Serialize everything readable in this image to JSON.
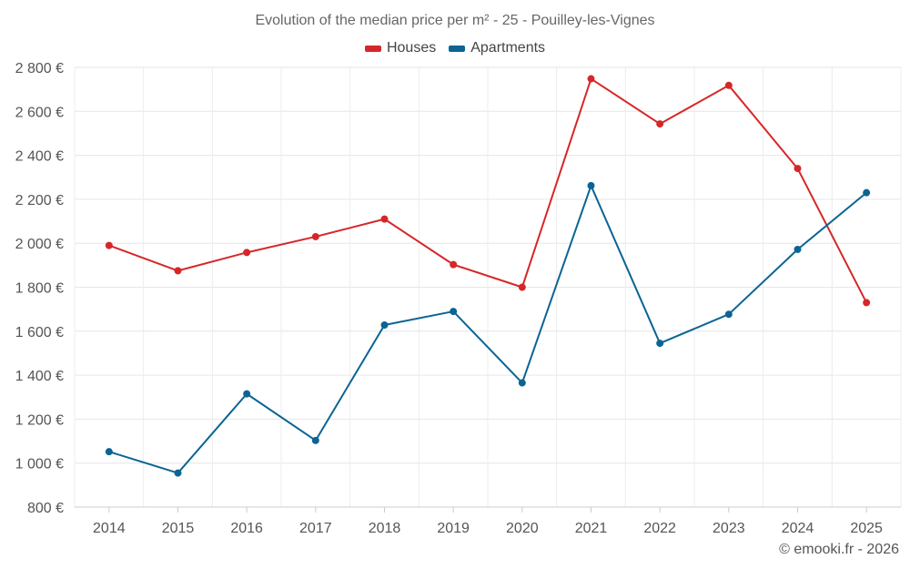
{
  "chart_data": {
    "type": "line",
    "title": "Evolution of the median price per m² - 25 - Pouilley-les-Vignes",
    "categories": [
      "2014",
      "2015",
      "2016",
      "2017",
      "2018",
      "2019",
      "2020",
      "2021",
      "2022",
      "2023",
      "2024",
      "2025"
    ],
    "series": [
      {
        "name": "Houses",
        "color": "#d62728",
        "values": [
          1990,
          1875,
          1958,
          2030,
          2110,
          1903,
          1800,
          2748,
          2543,
          2718,
          2340,
          1730
        ]
      },
      {
        "name": "Apartments",
        "color": "#0b6494",
        "values": [
          1052,
          955,
          1315,
          1103,
          1628,
          1690,
          1365,
          2262,
          1545,
          1677,
          1972,
          2230
        ]
      }
    ],
    "ylim": [
      800,
      2800
    ],
    "yticks": [
      800,
      1000,
      1200,
      1400,
      1600,
      1800,
      2000,
      2200,
      2400,
      2600,
      2800
    ],
    "ytick_labels": [
      "800 €",
      "1 000 €",
      "1 200 €",
      "1 400 €",
      "1 600 €",
      "1 800 €",
      "2 000 €",
      "2 200 €",
      "2 400 €",
      "2 600 €",
      "2 800 €"
    ],
    "xlabel": "",
    "ylabel": "",
    "grid": true,
    "legend_position": "top-center"
  },
  "legend": {
    "houses_label": "Houses",
    "apartments_label": "Apartments"
  },
  "footer": {
    "copyright": "© emooki.fr - 2026"
  }
}
